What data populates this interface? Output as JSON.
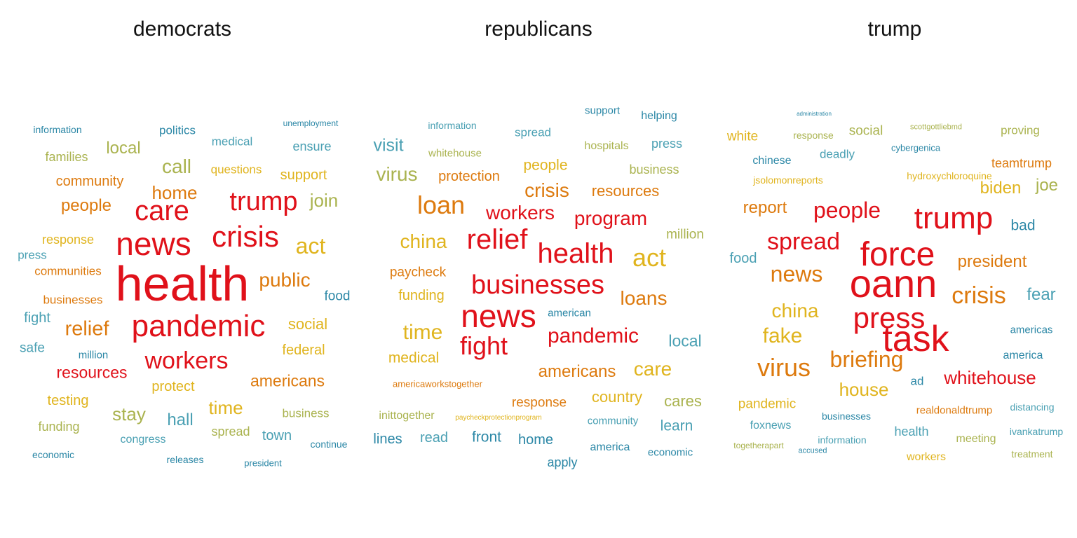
{
  "palette": {
    "red": "#e0111a",
    "orange": "#dd7a0e",
    "gold": "#e0b41e",
    "olive": "#aab34f",
    "teal": "#4aa0b3",
    "blue": "#2b87a6"
  },
  "panels": [
    {
      "title": "democrats",
      "words": [
        {
          "text": "health",
          "color": "red"
        },
        {
          "text": "pandemic",
          "color": "red"
        },
        {
          "text": "news",
          "color": "red"
        },
        {
          "text": "crisis",
          "color": "red"
        },
        {
          "text": "care",
          "color": "red"
        },
        {
          "text": "trump",
          "color": "red"
        },
        {
          "text": "workers",
          "color": "red"
        },
        {
          "text": "resources",
          "color": "red"
        },
        {
          "text": "relief",
          "color": "orange"
        },
        {
          "text": "home",
          "color": "orange"
        },
        {
          "text": "public",
          "color": "orange"
        },
        {
          "text": "people",
          "color": "orange"
        },
        {
          "text": "americans",
          "color": "orange"
        },
        {
          "text": "community",
          "color": "orange"
        },
        {
          "text": "communities",
          "color": "orange"
        },
        {
          "text": "businesses",
          "color": "orange"
        },
        {
          "text": "act",
          "color": "gold"
        },
        {
          "text": "time",
          "color": "gold"
        },
        {
          "text": "social",
          "color": "gold"
        },
        {
          "text": "federal",
          "color": "gold"
        },
        {
          "text": "protect",
          "color": "gold"
        },
        {
          "text": "testing",
          "color": "gold"
        },
        {
          "text": "response",
          "color": "gold"
        },
        {
          "text": "support",
          "color": "gold"
        },
        {
          "text": "questions",
          "color": "gold"
        },
        {
          "text": "call",
          "color": "olive"
        },
        {
          "text": "local",
          "color": "olive"
        },
        {
          "text": "join",
          "color": "olive"
        },
        {
          "text": "stay",
          "color": "olive"
        },
        {
          "text": "families",
          "color": "olive"
        },
        {
          "text": "funding",
          "color": "olive"
        },
        {
          "text": "spread",
          "color": "olive"
        },
        {
          "text": "business",
          "color": "olive"
        },
        {
          "text": "hall",
          "color": "teal"
        },
        {
          "text": "town",
          "color": "teal"
        },
        {
          "text": "fight",
          "color": "teal"
        },
        {
          "text": "safe",
          "color": "teal"
        },
        {
          "text": "press",
          "color": "teal"
        },
        {
          "text": "ensure",
          "color": "teal"
        },
        {
          "text": "medical",
          "color": "teal"
        },
        {
          "text": "congress",
          "color": "teal"
        },
        {
          "text": "food",
          "color": "blue"
        },
        {
          "text": "politics",
          "color": "blue"
        },
        {
          "text": "information",
          "color": "blue"
        },
        {
          "text": "unemployment",
          "color": "blue"
        },
        {
          "text": "million",
          "color": "blue"
        },
        {
          "text": "continue",
          "color": "blue"
        },
        {
          "text": "economic",
          "color": "blue"
        },
        {
          "text": "releases",
          "color": "blue"
        },
        {
          "text": "president",
          "color": "blue"
        }
      ]
    },
    {
      "title": "republicans",
      "words": [
        {
          "text": "news",
          "color": "red"
        },
        {
          "text": "businesses",
          "color": "red"
        },
        {
          "text": "health",
          "color": "red"
        },
        {
          "text": "relief",
          "color": "red"
        },
        {
          "text": "fight",
          "color": "red"
        },
        {
          "text": "pandemic",
          "color": "red"
        },
        {
          "text": "workers",
          "color": "red"
        },
        {
          "text": "program",
          "color": "red"
        },
        {
          "text": "loan",
          "color": "orange"
        },
        {
          "text": "crisis",
          "color": "orange"
        },
        {
          "text": "loans",
          "color": "orange"
        },
        {
          "text": "americans",
          "color": "orange"
        },
        {
          "text": "resources",
          "color": "orange"
        },
        {
          "text": "protection",
          "color": "orange"
        },
        {
          "text": "paycheck",
          "color": "orange"
        },
        {
          "text": "response",
          "color": "orange"
        },
        {
          "text": "americaworkstogether",
          "color": "orange"
        },
        {
          "text": "act",
          "color": "gold"
        },
        {
          "text": "china",
          "color": "gold"
        },
        {
          "text": "time",
          "color": "gold"
        },
        {
          "text": "care",
          "color": "gold"
        },
        {
          "text": "medical",
          "color": "gold"
        },
        {
          "text": "country",
          "color": "gold"
        },
        {
          "text": "people",
          "color": "gold"
        },
        {
          "text": "funding",
          "color": "gold"
        },
        {
          "text": "paycheckprotectionprogram",
          "color": "gold"
        },
        {
          "text": "virus",
          "color": "olive"
        },
        {
          "text": "cares",
          "color": "olive"
        },
        {
          "text": "business",
          "color": "olive"
        },
        {
          "text": "million",
          "color": "olive"
        },
        {
          "text": "hospitals",
          "color": "olive"
        },
        {
          "text": "whitehouse",
          "color": "olive"
        },
        {
          "text": "inittogether",
          "color": "olive"
        },
        {
          "text": "visit",
          "color": "teal"
        },
        {
          "text": "local",
          "color": "teal"
        },
        {
          "text": "learn",
          "color": "teal"
        },
        {
          "text": "read",
          "color": "teal"
        },
        {
          "text": "press",
          "color": "teal"
        },
        {
          "text": "spread",
          "color": "teal"
        },
        {
          "text": "information",
          "color": "teal"
        },
        {
          "text": "community",
          "color": "teal"
        },
        {
          "text": "lines",
          "color": "blue"
        },
        {
          "text": "front",
          "color": "blue"
        },
        {
          "text": "home",
          "color": "blue"
        },
        {
          "text": "apply",
          "color": "blue"
        },
        {
          "text": "america",
          "color": "blue"
        },
        {
          "text": "economic",
          "color": "blue"
        },
        {
          "text": "american",
          "color": "blue"
        },
        {
          "text": "support",
          "color": "blue"
        },
        {
          "text": "helping",
          "color": "blue"
        }
      ]
    },
    {
      "title": "trump",
      "words": [
        {
          "text": "oann",
          "color": "red"
        },
        {
          "text": "force",
          "color": "red"
        },
        {
          "text": "task",
          "color": "red"
        },
        {
          "text": "trump",
          "color": "red"
        },
        {
          "text": "press",
          "color": "red"
        },
        {
          "text": "people",
          "color": "red"
        },
        {
          "text": "spread",
          "color": "red"
        },
        {
          "text": "whitehouse",
          "color": "red"
        },
        {
          "text": "virus",
          "color": "orange"
        },
        {
          "text": "briefing",
          "color": "orange"
        },
        {
          "text": "news",
          "color": "orange"
        },
        {
          "text": "crisis",
          "color": "orange"
        },
        {
          "text": "president",
          "color": "orange"
        },
        {
          "text": "report",
          "color": "orange"
        },
        {
          "text": "teamtrump",
          "color": "orange"
        },
        {
          "text": "realdonaldtrump",
          "color": "orange"
        },
        {
          "text": "china",
          "color": "gold"
        },
        {
          "text": "fake",
          "color": "gold"
        },
        {
          "text": "house",
          "color": "gold"
        },
        {
          "text": "biden",
          "color": "gold"
        },
        {
          "text": "white",
          "color": "gold"
        },
        {
          "text": "pandemic",
          "color": "gold"
        },
        {
          "text": "workers",
          "color": "gold"
        },
        {
          "text": "jsolomonreports",
          "color": "gold"
        },
        {
          "text": "hydroxychloroquine",
          "color": "gold"
        },
        {
          "text": "joe",
          "color": "olive"
        },
        {
          "text": "social",
          "color": "olive"
        },
        {
          "text": "proving",
          "color": "olive"
        },
        {
          "text": "meeting",
          "color": "olive"
        },
        {
          "text": "response",
          "color": "olive"
        },
        {
          "text": "treatment",
          "color": "olive"
        },
        {
          "text": "scottgottliebmd",
          "color": "olive"
        },
        {
          "text": "togetherapart",
          "color": "olive"
        },
        {
          "text": "fear",
          "color": "teal"
        },
        {
          "text": "food",
          "color": "teal"
        },
        {
          "text": "deadly",
          "color": "teal"
        },
        {
          "text": "health",
          "color": "teal"
        },
        {
          "text": "foxnews",
          "color": "teal"
        },
        {
          "text": "distancing",
          "color": "teal"
        },
        {
          "text": "information",
          "color": "teal"
        },
        {
          "text": "ivankatrump",
          "color": "teal"
        },
        {
          "text": "bad",
          "color": "blue"
        },
        {
          "text": "chinese",
          "color": "blue"
        },
        {
          "text": "americas",
          "color": "blue"
        },
        {
          "text": "america",
          "color": "blue"
        },
        {
          "text": "ad",
          "color": "blue"
        },
        {
          "text": "cybergenica",
          "color": "blue"
        },
        {
          "text": "businesses",
          "color": "blue"
        },
        {
          "text": "administration",
          "color": "blue"
        },
        {
          "text": "accused",
          "color": "blue"
        }
      ]
    }
  ]
}
